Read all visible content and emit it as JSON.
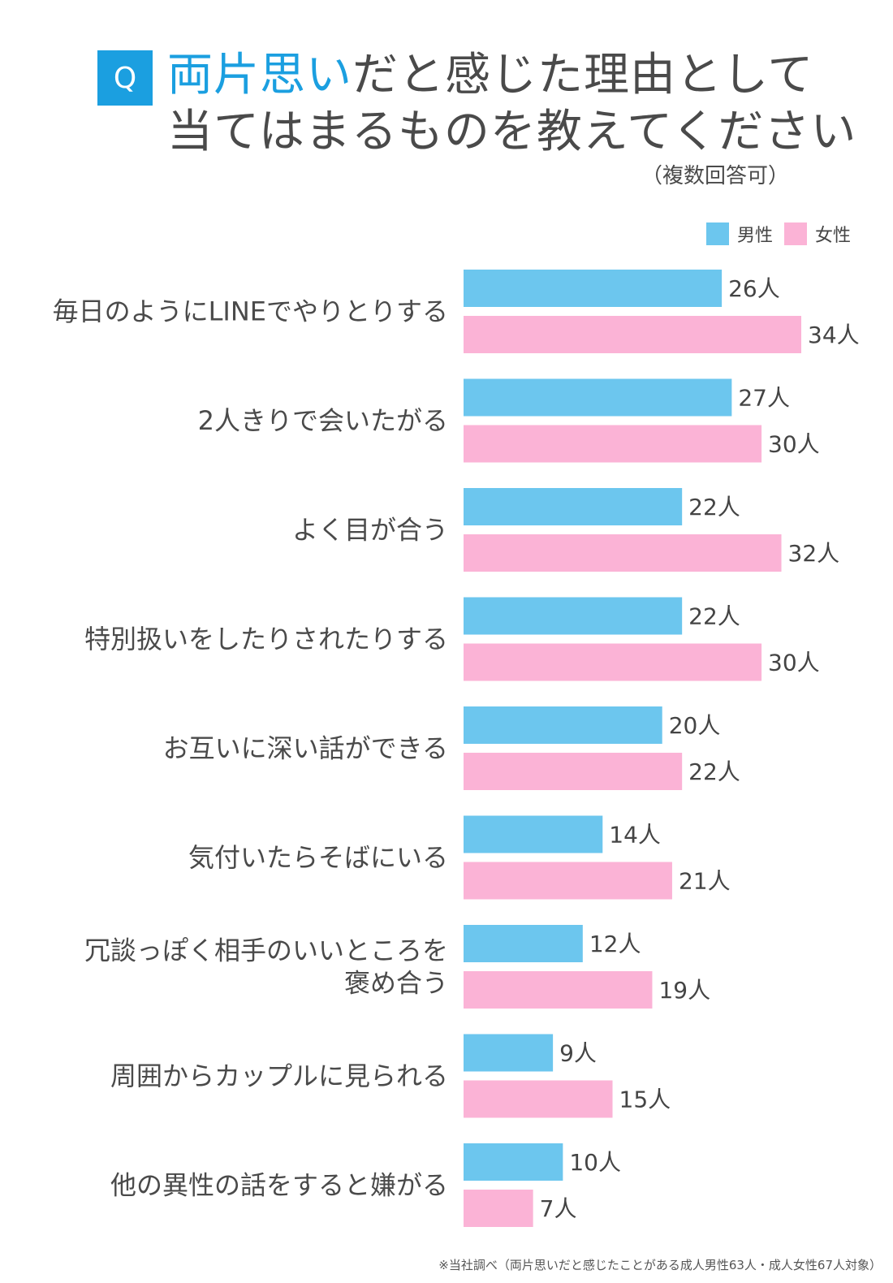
{
  "header": {
    "badge": "Q",
    "title_highlight": "両片思い",
    "title_rest_line1": "だと感じた理由として",
    "title_line2": "当てはまるものを教えてください",
    "subtitle": "（複数回答可）"
  },
  "footnote": "※当社調べ（両片思いだと感じたことがある成人男性63人・成人女性67人対象）",
  "chart_data": {
    "type": "bar",
    "orientation": "horizontal",
    "unit": "人",
    "categories": [
      [
        "毎日のようにLINEでやりとりする"
      ],
      [
        "2人きりで会いたがる"
      ],
      [
        "よく目が合う"
      ],
      [
        "特別扱いをしたりされたりする"
      ],
      [
        "お互いに深い話ができる"
      ],
      [
        "気付いたらそばにいる"
      ],
      [
        "冗談っぽく相手のいいところを",
        "褒め合う"
      ],
      [
        "周囲からカップルに見られる"
      ],
      [
        "他の異性の話をすると嫌がる"
      ]
    ],
    "series": [
      {
        "name": "男性",
        "color": "#6cc6ee",
        "values": [
          26,
          27,
          22,
          22,
          20,
          14,
          12,
          9,
          10
        ]
      },
      {
        "name": "女性",
        "color": "#fbb3d6",
        "values": [
          34,
          30,
          32,
          30,
          22,
          21,
          19,
          15,
          7
        ]
      }
    ],
    "xlim": [
      0,
      34
    ],
    "legend_position": "top-right",
    "grid": false
  }
}
